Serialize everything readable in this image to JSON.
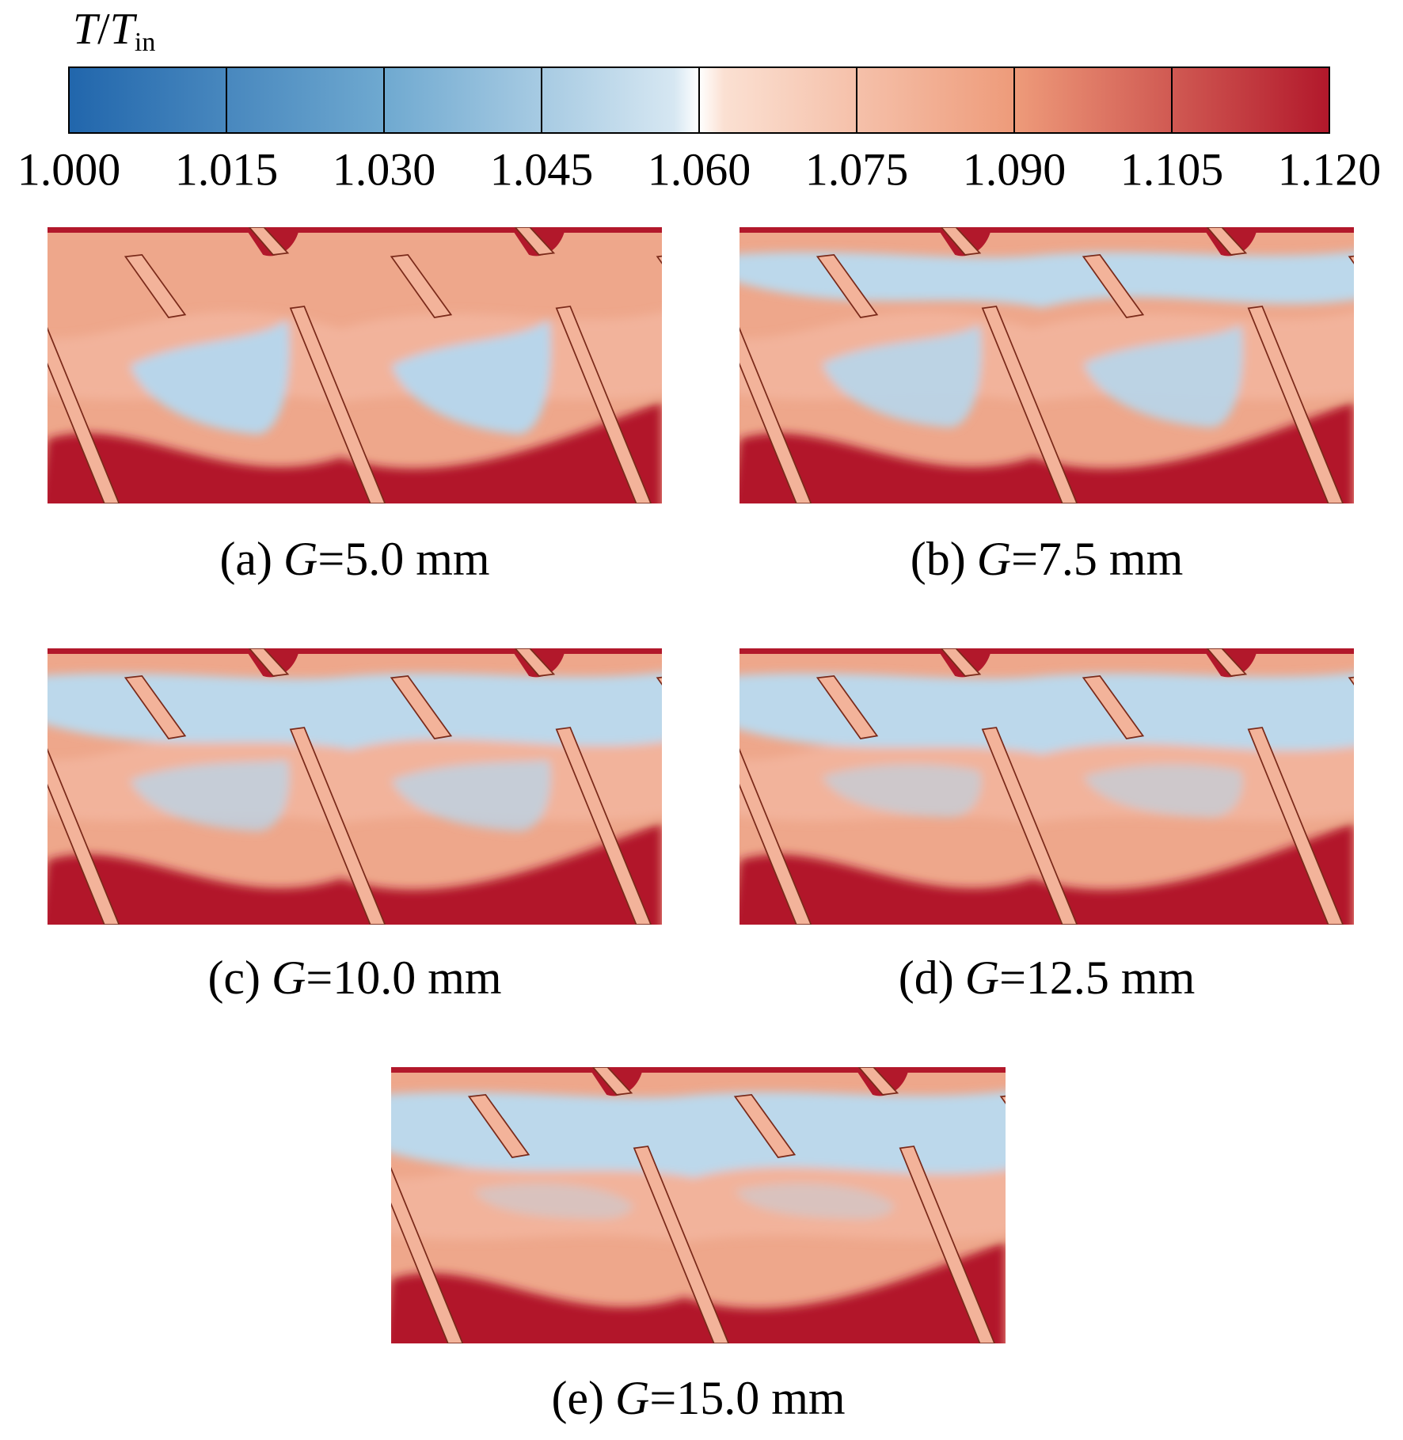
{
  "colorbar": {
    "label": {
      "symbol": "T",
      "slash": "/",
      "base": "T",
      "subscript": "in"
    },
    "lim": [
      1.0,
      1.12
    ],
    "ticks": [
      {
        "value": 1.0,
        "label": "1.000"
      },
      {
        "value": 1.015,
        "label": "1.015"
      },
      {
        "value": 1.03,
        "label": "1.030"
      },
      {
        "value": 1.045,
        "label": "1.045"
      },
      {
        "value": 1.06,
        "label": "1.060"
      },
      {
        "value": 1.075,
        "label": "1.075"
      },
      {
        "value": 1.09,
        "label": "1.090"
      },
      {
        "value": 1.105,
        "label": "1.105"
      },
      {
        "value": 1.12,
        "label": "1.120"
      }
    ]
  },
  "panels": [
    {
      "prefix": "(a)",
      "symbol": "G",
      "text": "=5.0 mm"
    },
    {
      "prefix": "(b)",
      "symbol": "G",
      "text": "=7.5 mm"
    },
    {
      "prefix": "(c)",
      "symbol": "G",
      "text": "=10.0 mm"
    },
    {
      "prefix": "(d)",
      "symbol": "G",
      "text": "=12.5 mm"
    },
    {
      "prefix": "(e)",
      "symbol": "G",
      "text": "=15.0 mm"
    }
  ]
}
